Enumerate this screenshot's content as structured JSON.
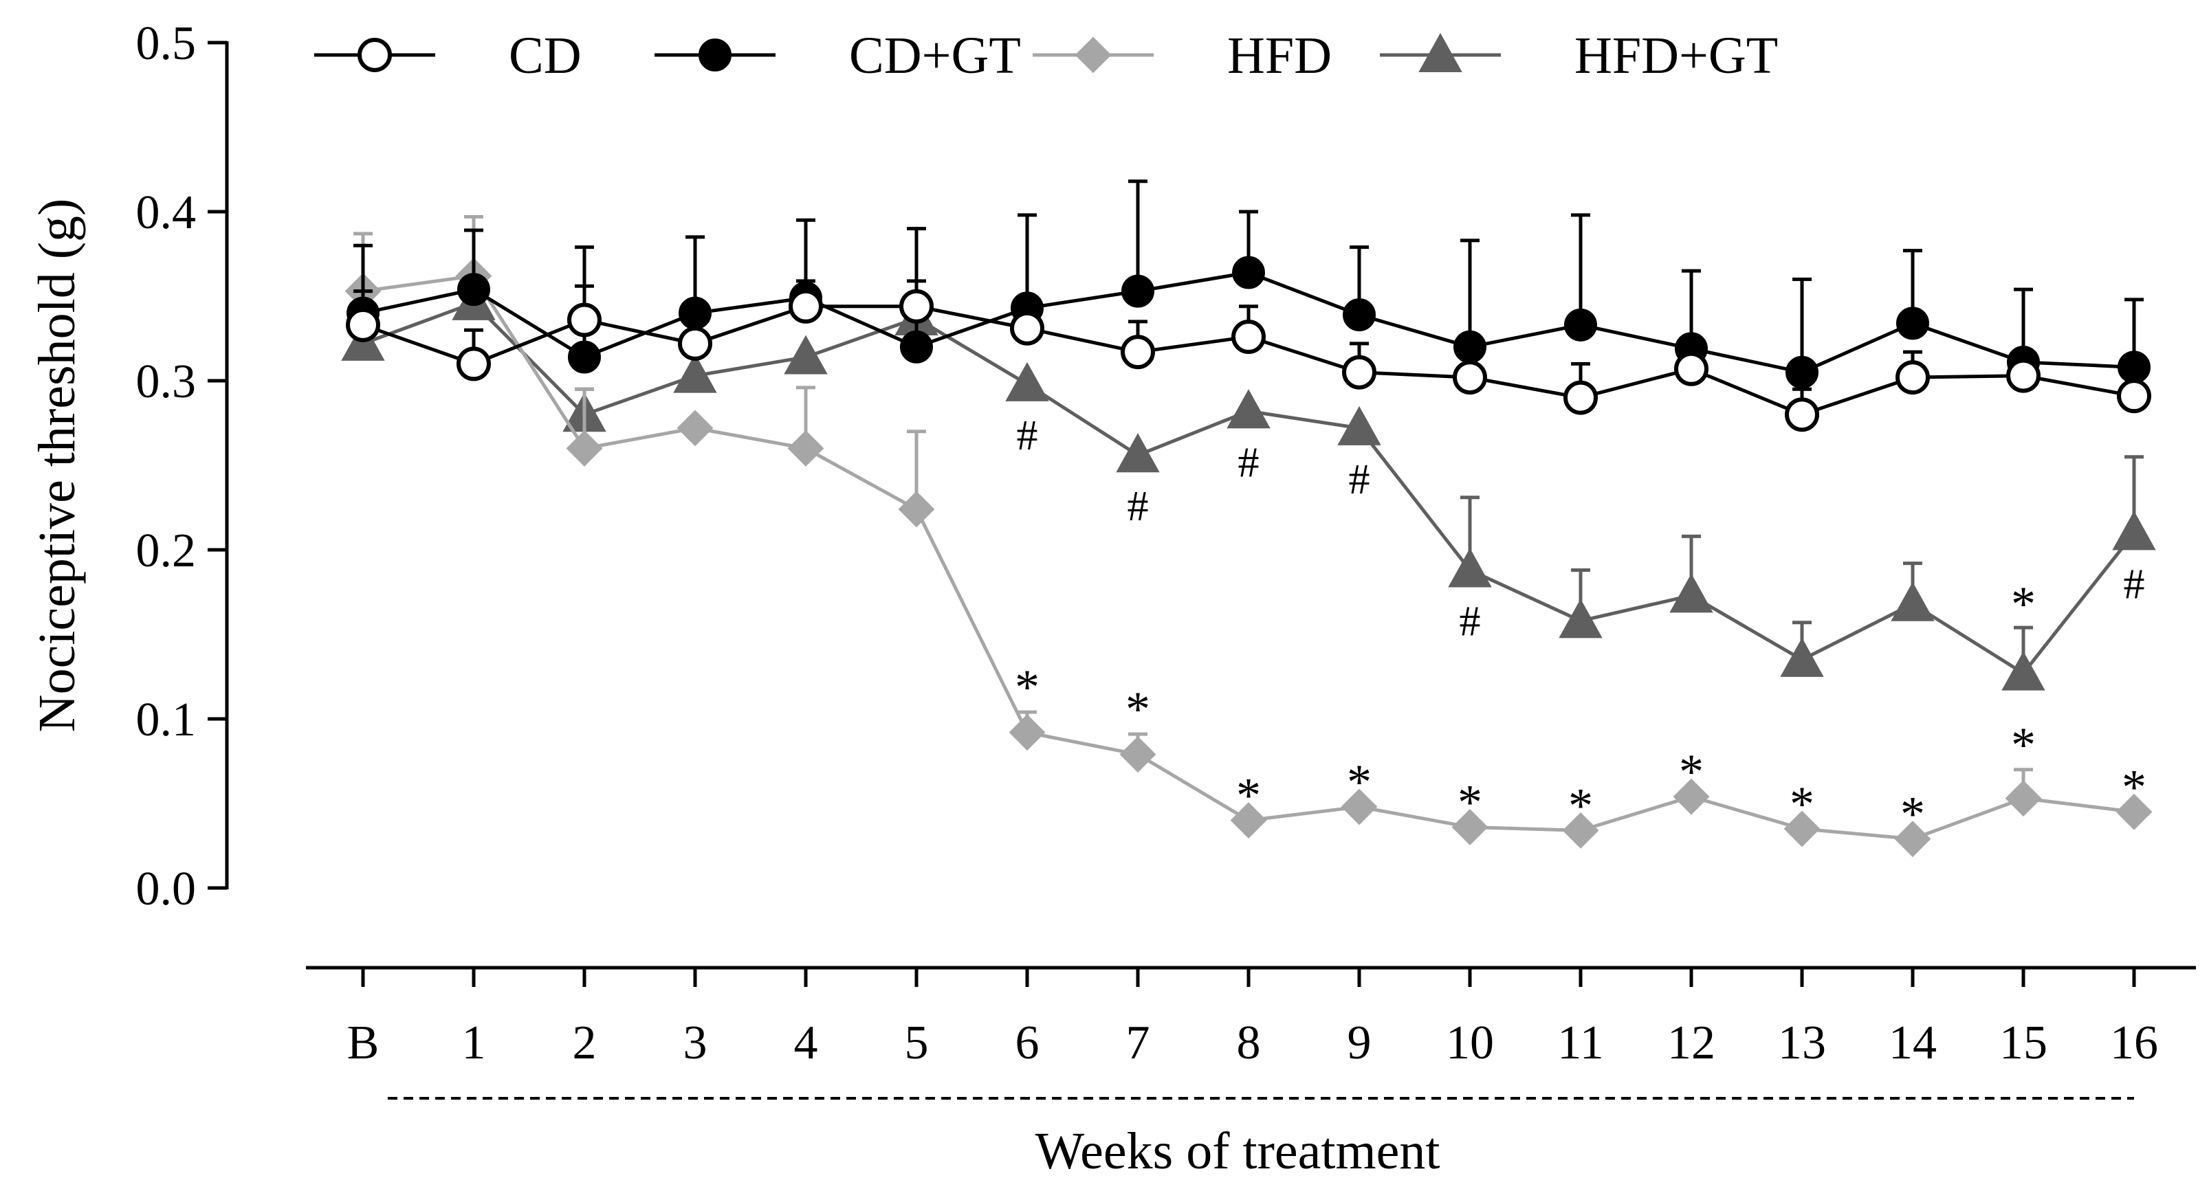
{
  "chart_data": {
    "type": "line",
    "xlabel": "Weeks of treatment",
    "ylabel": "Nociceptive threshold (g)",
    "ylim": [
      0.0,
      0.5
    ],
    "y_ticks": [
      "0.0",
      "0.1",
      "0.2",
      "0.3",
      "0.4",
      "0.5"
    ],
    "categories": [
      "B",
      "1",
      "2",
      "3",
      "4",
      "5",
      "6",
      "7",
      "8",
      "9",
      "10",
      "11",
      "12",
      "13",
      "14",
      "15",
      "16"
    ],
    "legend_position": "top",
    "grid": false,
    "series": [
      {
        "name": "CD",
        "marker": "circle-open",
        "color": "#000000",
        "values": [
          0.333,
          0.31,
          0.336,
          0.322,
          0.344,
          0.344,
          0.331,
          0.317,
          0.326,
          0.305,
          0.302,
          0.29,
          0.307,
          0.28,
          0.302,
          0.303,
          0.291
        ],
        "errors": [
          0.02,
          0.02,
          0.02,
          0.018,
          0.015,
          0.015,
          0.015,
          0.018,
          0.018,
          0.017,
          0.02,
          0.02,
          0.015,
          0.015,
          0.015,
          0.015,
          0.015
        ]
      },
      {
        "name": "CD+GT",
        "marker": "circle-filled",
        "color": "#000000",
        "values": [
          0.34,
          0.354,
          0.314,
          0.34,
          0.349,
          0.32,
          0.343,
          0.353,
          0.364,
          0.339,
          0.32,
          0.333,
          0.319,
          0.305,
          0.334,
          0.311,
          0.308
        ],
        "errors": [
          0.04,
          0.035,
          0.065,
          0.045,
          0.046,
          0.07,
          0.055,
          0.065,
          0.036,
          0.04,
          0.063,
          0.065,
          0.046,
          0.055,
          0.043,
          0.043,
          0.04
        ]
      },
      {
        "name": "HFD",
        "marker": "diamond",
        "color": "#a6a6a6",
        "values": [
          0.353,
          0.362,
          0.26,
          0.272,
          0.26,
          0.224,
          0.092,
          0.079,
          0.04,
          0.048,
          0.036,
          0.034,
          0.054,
          0.035,
          0.029,
          0.053,
          0.045
        ],
        "errors": [
          0.034,
          0.035,
          0.035,
          0.0,
          0.036,
          0.046,
          0.012,
          0.012,
          0.0,
          0.0,
          0.0,
          0.0,
          0.0,
          0.0,
          0.0,
          0.017,
          0.0
        ]
      },
      {
        "name": "HFD+GT",
        "marker": "triangle",
        "color": "#5f5f5f",
        "values": [
          0.322,
          0.346,
          0.28,
          0.303,
          0.314,
          0.337,
          0.298,
          0.256,
          0.282,
          0.272,
          0.188,
          0.158,
          0.173,
          0.135,
          0.168,
          0.127,
          0.21
        ],
        "errors": [
          0.0,
          0.0,
          0.015,
          0.0,
          0.0,
          0.0,
          0.0,
          0.0,
          0.0,
          0.0,
          0.043,
          0.03,
          0.035,
          0.022,
          0.024,
          0.027,
          0.045
        ]
      }
    ],
    "annotations": {
      "star": {
        "symbol": "*",
        "weeks": [
          "6",
          "7",
          "8",
          "9",
          "10",
          "11",
          "12",
          "13",
          "14",
          "15",
          "16"
        ]
      },
      "star_hfdgt": {
        "symbol": "*",
        "weeks": [
          "15"
        ]
      },
      "hash": {
        "symbol": "#",
        "weeks": [
          "6",
          "7",
          "8",
          "9",
          "10",
          "16"
        ]
      }
    }
  }
}
